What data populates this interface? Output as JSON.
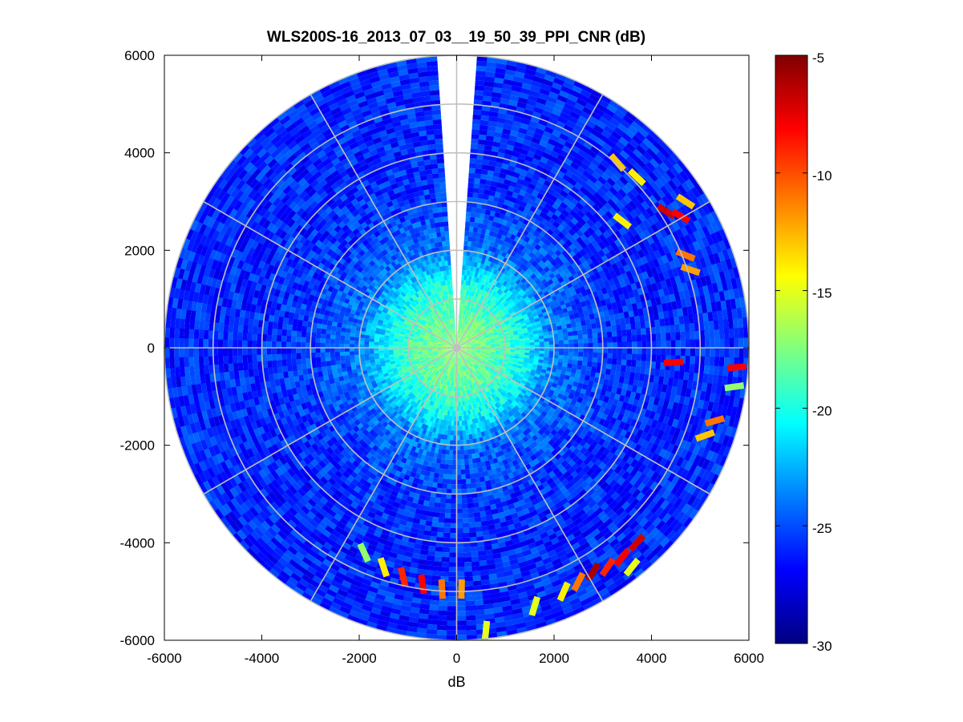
{
  "chart_data": {
    "type": "heatmap",
    "subtype": "polar-ppi",
    "title": "WLS200S-16_2013_07_03__19_50_39_PPI_CNR (dB)",
    "xlabel": "dB",
    "ylabel": "",
    "xlim": [
      -6000,
      6000
    ],
    "ylim": [
      -6000,
      6000
    ],
    "x_ticks": [
      "-6000",
      "-4000",
      "-2000",
      "0",
      "2000",
      "4000",
      "6000"
    ],
    "y_ticks": [
      "6000",
      "4000",
      "2000",
      "0",
      "-2000",
      "-4000",
      "-6000"
    ],
    "grid": true,
    "polar_rings_m": [
      1000,
      2000,
      3000,
      4000,
      5000,
      6000
    ],
    "polar_spokes_deg": [
      0,
      30,
      60,
      90,
      120,
      150,
      180,
      210,
      240,
      270,
      300,
      330
    ],
    "missing_sector_deg": [
      355,
      5
    ],
    "colormap": "jet",
    "colorbar": {
      "range": [
        -30,
        -5
      ],
      "ticks": [
        "-5",
        "-10",
        "-15",
        "-20",
        "-25",
        "-30"
      ],
      "position": "right"
    },
    "radial_profile": [
      {
        "range_m": 0,
        "cnr_db": -17
      },
      {
        "range_m": 1000,
        "cnr_db": -19
      },
      {
        "range_m": 1500,
        "cnr_db": -21
      },
      {
        "range_m": 2000,
        "cnr_db": -24
      },
      {
        "range_m": 3000,
        "cnr_db": -25.5
      },
      {
        "range_m": 4000,
        "cnr_db": -26
      },
      {
        "range_m": 5000,
        "cnr_db": -26
      },
      {
        "range_m": 6000,
        "cnr_db": -26
      }
    ],
    "hotspots": [
      {
        "x": 3300,
        "y": 3800,
        "cnr_db": -13
      },
      {
        "x": 3700,
        "y": 3500,
        "cnr_db": -14
      },
      {
        "x": 4300,
        "y": 2800,
        "cnr_db": -7
      },
      {
        "x": 4600,
        "y": 2700,
        "cnr_db": -8
      },
      {
        "x": 4700,
        "y": 1900,
        "cnr_db": -11
      },
      {
        "x": 4800,
        "y": 1600,
        "cnr_db": -12
      },
      {
        "x": 4700,
        "y": 3000,
        "cnr_db": -13
      },
      {
        "x": 3400,
        "y": 2600,
        "cnr_db": -14
      },
      {
        "x": 4450,
        "y": -300,
        "cnr_db": -8
      },
      {
        "x": 5750,
        "y": -400,
        "cnr_db": -8
      },
      {
        "x": 5700,
        "y": -800,
        "cnr_db": -17
      },
      {
        "x": 5300,
        "y": -1500,
        "cnr_db": -11
      },
      {
        "x": 5100,
        "y": -1800,
        "cnr_db": -13
      },
      {
        "x": 3700,
        "y": -4000,
        "cnr_db": -7
      },
      {
        "x": 3400,
        "y": -4300,
        "cnr_db": -8
      },
      {
        "x": 3100,
        "y": -4500,
        "cnr_db": -9
      },
      {
        "x": 2800,
        "y": -4600,
        "cnr_db": -6
      },
      {
        "x": 2500,
        "y": -4800,
        "cnr_db": -11
      },
      {
        "x": 2200,
        "y": -5000,
        "cnr_db": -14
      },
      {
        "x": 1600,
        "y": -5300,
        "cnr_db": -15
      },
      {
        "x": 3600,
        "y": -4500,
        "cnr_db": -15
      },
      {
        "x": -1500,
        "y": -4500,
        "cnr_db": -14
      },
      {
        "x": -1100,
        "y": -4700,
        "cnr_db": -9
      },
      {
        "x": -700,
        "y": -4850,
        "cnr_db": -8
      },
      {
        "x": -300,
        "y": -4950,
        "cnr_db": -11
      },
      {
        "x": 100,
        "y": -4950,
        "cnr_db": -12
      },
      {
        "x": -1900,
        "y": -4200,
        "cnr_db": -17
      },
      {
        "x": 600,
        "y": -5800,
        "cnr_db": -15
      }
    ]
  }
}
